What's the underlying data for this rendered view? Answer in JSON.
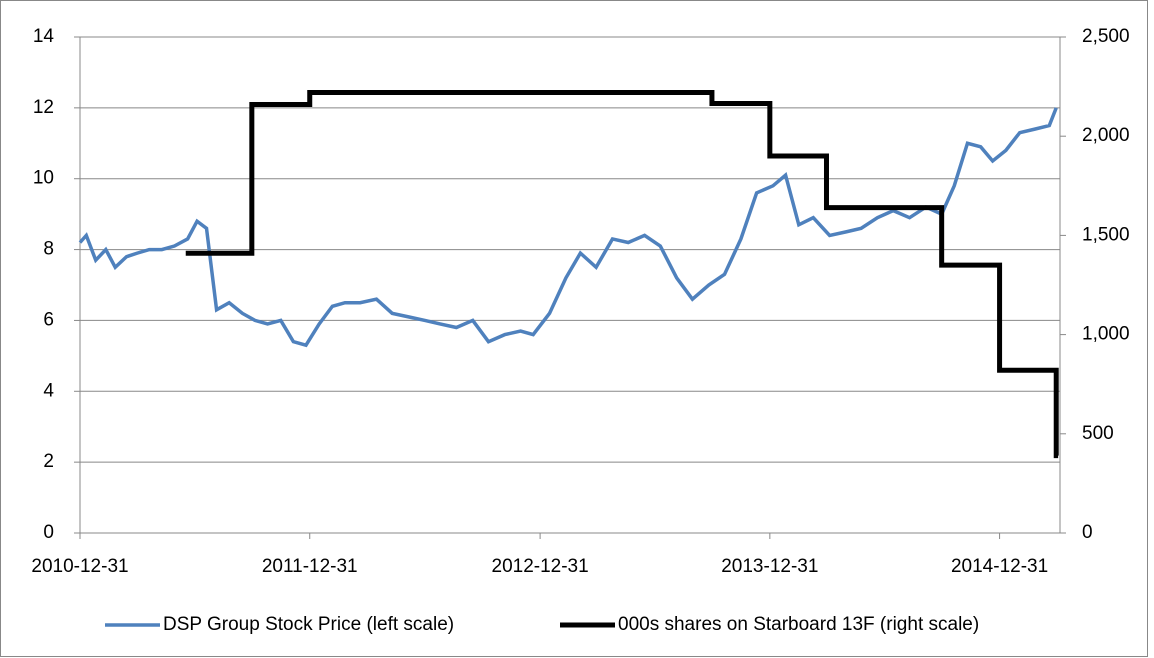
{
  "chart_data": {
    "type": "line",
    "xlim": [
      "2010-12-31",
      "2015-04-06"
    ],
    "xticks": [
      "2010-12-31",
      "2011-12-31",
      "2012-12-31",
      "2013-12-31",
      "2014-12-31"
    ],
    "ylim": [
      0,
      14
    ],
    "yticks": [
      0,
      2,
      4,
      6,
      8,
      10,
      12,
      14
    ],
    "y2lim": [
      0,
      2500
    ],
    "y2ticks": [
      0,
      {
        "value": 500,
        "label": "500"
      },
      {
        "value": 1000,
        "label": "1,000"
      },
      {
        "value": 1500,
        "label": "1,500"
      },
      {
        "value": 2000,
        "label": "2,000"
      },
      {
        "value": 2500,
        "label": "2,500"
      }
    ],
    "grid": true,
    "legend": "bottom",
    "series": [
      {
        "name": "DSP Group Stock Price (left scale)",
        "color": "#4f81bd",
        "x": [
          "2010-12-31",
          "2011-01-10",
          "2011-01-25",
          "2011-02-10",
          "2011-02-25",
          "2011-03-15",
          "2011-04-01",
          "2011-04-20",
          "2011-05-10",
          "2011-05-30",
          "2011-06-20",
          "2011-07-05",
          "2011-07-20",
          "2011-08-05",
          "2011-08-25",
          "2011-09-15",
          "2011-10-05",
          "2011-10-25",
          "2011-11-15",
          "2011-12-05",
          "2011-12-25",
          "2012-01-15",
          "2012-02-05",
          "2012-02-25",
          "2012-03-20",
          "2012-04-15",
          "2012-05-10",
          "2012-06-05",
          "2012-07-01",
          "2012-07-25",
          "2012-08-20",
          "2012-09-15",
          "2012-10-10",
          "2012-11-05",
          "2012-11-30",
          "2012-12-20",
          "2013-01-15",
          "2013-02-10",
          "2013-03-05",
          "2013-03-30",
          "2013-04-25",
          "2013-05-20",
          "2013-06-15",
          "2013-07-10",
          "2013-08-05",
          "2013-08-30",
          "2013-09-25",
          "2013-10-20",
          "2013-11-15",
          "2013-12-10",
          "2014-01-05",
          "2014-01-25",
          "2014-02-15",
          "2014-03-10",
          "2014-04-05",
          "2014-05-01",
          "2014-05-25",
          "2014-06-20",
          "2014-07-15",
          "2014-08-10",
          "2014-09-05",
          "2014-09-30",
          "2014-10-20",
          "2014-11-10",
          "2014-12-01",
          "2014-12-20",
          "2015-01-10",
          "2015-02-01",
          "2015-02-25",
          "2015-03-20",
          "2015-03-31"
        ],
        "values": [
          8.2,
          8.4,
          7.7,
          8.0,
          7.5,
          7.8,
          7.9,
          8.0,
          8.0,
          8.1,
          8.3,
          8.8,
          8.6,
          6.3,
          6.5,
          6.2,
          6.0,
          5.9,
          6.0,
          5.4,
          5.3,
          5.9,
          6.4,
          6.5,
          6.5,
          6.6,
          6.2,
          6.1,
          6.0,
          5.9,
          5.8,
          6.0,
          5.4,
          5.6,
          5.7,
          5.6,
          6.2,
          7.2,
          7.9,
          7.5,
          8.3,
          8.2,
          8.4,
          8.1,
          7.2,
          6.6,
          7.0,
          7.3,
          8.3,
          9.6,
          9.8,
          10.1,
          8.7,
          8.9,
          8.4,
          8.5,
          8.6,
          8.9,
          9.1,
          8.9,
          9.2,
          9.0,
          9.8,
          11.0,
          10.9,
          10.5,
          10.8,
          11.3,
          11.4,
          11.5,
          12.0
        ]
      },
      {
        "name": "000s shares on Starboard 13F (right scale)",
        "color": "#000000",
        "axis": "y2",
        "step": "post",
        "x": [
          "2011-06-17",
          "2011-09-30",
          "2011-12-31",
          "2013-09-30",
          "2013-12-31",
          "2014-03-31",
          "2014-09-30",
          "2014-12-31",
          "2015-03-31",
          "2015-04-03"
        ],
        "values": [
          1410,
          2160,
          2220,
          2165,
          1900,
          1640,
          1350,
          820,
          390,
          390
        ]
      }
    ]
  }
}
